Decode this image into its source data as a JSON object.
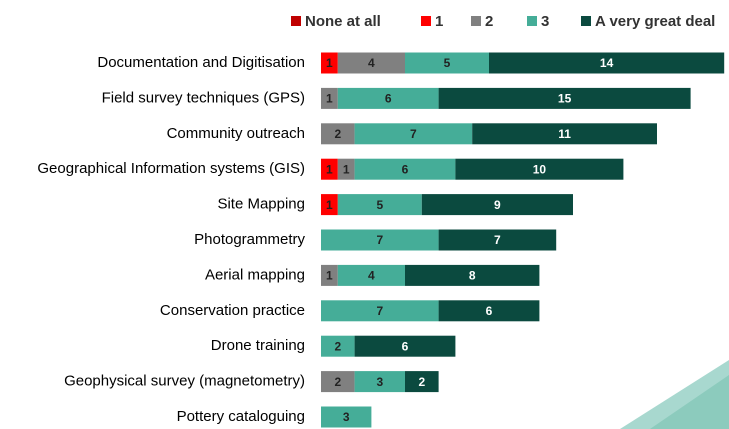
{
  "chart_data": {
    "type": "stacked-bar-horizontal",
    "categories": [
      "Documentation and Digitisation",
      "Field survey techniques (GPS)",
      "Community outreach",
      "Geographical Information systems (GIS)",
      "Site Mapping",
      "Photogrammetry",
      "Aerial mapping",
      "Conservation practice",
      "Drone training",
      "Geophysical survey (magnetometry)",
      "Pottery cataloguing"
    ],
    "series": [
      {
        "name": "None at all",
        "color": "#c00000",
        "values": [
          0,
          0,
          0,
          0,
          0,
          0,
          0,
          0,
          0,
          0,
          0
        ]
      },
      {
        "name": "1",
        "color": "#ff0000",
        "values": [
          1,
          0,
          0,
          1,
          1,
          0,
          0,
          0,
          0,
          0,
          0
        ]
      },
      {
        "name": "2",
        "color": "#808080",
        "values": [
          4,
          1,
          2,
          1,
          0,
          0,
          1,
          0,
          0,
          2,
          0
        ]
      },
      {
        "name": "3",
        "color": "#45ad98",
        "values": [
          5,
          6,
          7,
          6,
          5,
          7,
          4,
          7,
          2,
          3,
          3
        ]
      },
      {
        "name": "A very great deal",
        "color": "#0b4a3f",
        "values": [
          14,
          15,
          11,
          10,
          9,
          7,
          8,
          6,
          6,
          2,
          0
        ]
      }
    ],
    "legend": "top"
  }
}
